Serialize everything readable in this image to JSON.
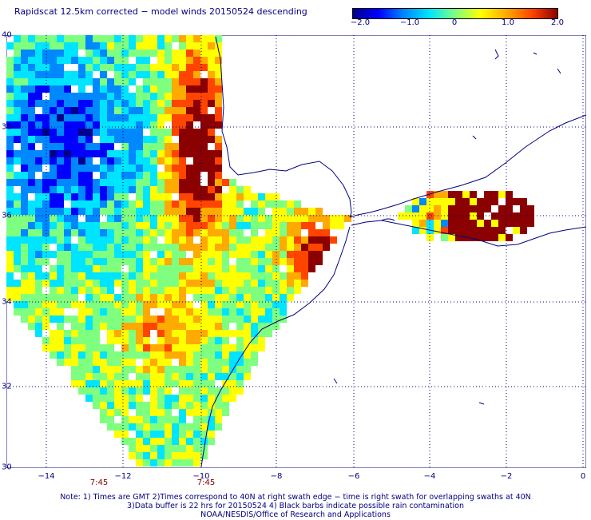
{
  "title": "Rapidscat 12.5km corrected − model winds 20150524 descending",
  "colorbar": {
    "labels": [
      "−2.0",
      "−1.0",
      "0",
      "1.0",
      "2.0"
    ],
    "colors": [
      "#00008b",
      "#0000ff",
      "#0088ff",
      "#00e5ff",
      "#7fff7f",
      "#ffff00",
      "#ffaa00",
      "#ff4400",
      "#8b0000"
    ]
  },
  "map": {
    "lat_labels": [
      "40",
      "38",
      "36",
      "34",
      "32",
      "30"
    ],
    "lon_labels": [
      "−14",
      "−12",
      "−10",
      "−8",
      "−6",
      "−4",
      "−2",
      "0"
    ],
    "time_labels": [
      "7:45",
      "7:45"
    ],
    "grid_color": "#000080",
    "coast_color": "#000080"
  },
  "notes": [
    "Note: 1) Times are GMT 2)Times correspond to 40N at right swath edge − time is right swath for overlapping swaths at 40N",
    "3)Data buffer is 22 hrs for 20150524 4) Black barbs indicate possible rain contamination",
    "NOAA/NESDIS/Office of Research and Applications"
  ]
}
